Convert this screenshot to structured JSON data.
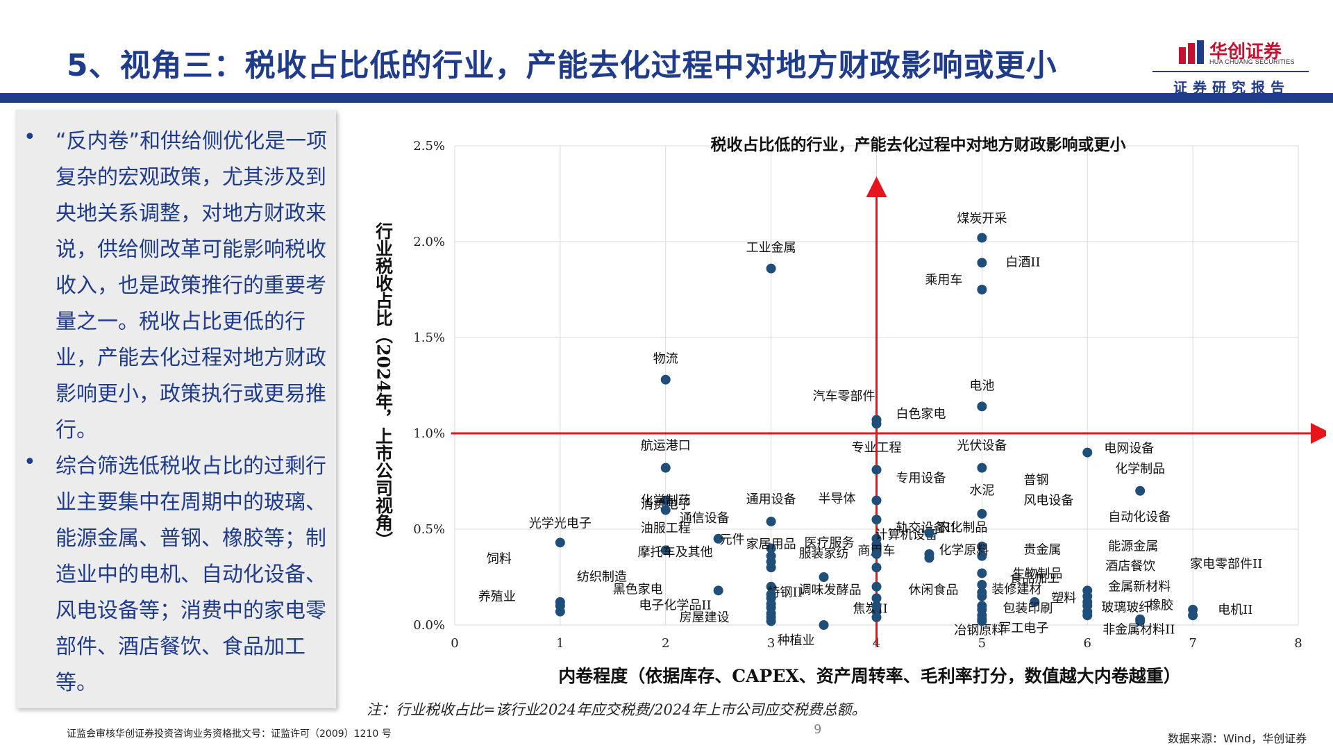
{
  "slide": {
    "title": "5、视角三：税收占比低的行业，产能去化过程中对地方财政影响或更小",
    "logo_cn": "华创证券",
    "logo_en": "HUA CHUANG SECURITIES",
    "logo_sub": "证券研究报告",
    "bullets": [
      "“反内卷”和供给侧优化是一项复杂的宏观政策，尤其涉及到央地关系调整，对地方财政来说，供给侧改革可能影响税收收入，也是政策推行的重要考量之一。税收占比更低的行业，产能去化过程对地方财政影响更小，政策执行或更易推行。",
      "综合筛选低税收占比的过剩行业主要集中在周期中的玻璃、能源金属、普钢、橡胶等；制造业中的电机、自动化设备、风电设备等；消费中的家电零部件、酒店餐饮、食品加工等。"
    ],
    "bullet_symbol": "•",
    "note": "注：行业税收占比=该行业2024年应交税费/2024年上市公司应交税费总额。",
    "footer_left": "证监会审核华创证券投资咨询业务资格批文号：证监许可（2009）1210 号",
    "page_number": "9",
    "footer_right": "数据来源：Wind，华创证券"
  },
  "colors": {
    "title": "#1f3b8c",
    "brand_red": "#c8102e",
    "point": "#1f4e79",
    "threshold_line": "#e8141c",
    "grid": "#d9d9d9"
  },
  "chart_data": {
    "type": "scatter",
    "title": "税收占比低的行业，产能去化过程中对地方财政影响或更小",
    "xlabel": "内卷程度（依据库存、CAPEX、资产周转率、毛利率打分，数值越大内卷越重）",
    "ylabel": "行业税收占比（2024年，上市公司视角）",
    "xlim": [
      0,
      8
    ],
    "ylim": [
      0,
      2.5
    ],
    "xticks": [
      "0",
      "1",
      "2",
      "3",
      "4",
      "5",
      "6",
      "7",
      "8"
    ],
    "yticks": [
      "0.0%",
      "0.5%",
      "1.0%",
      "1.5%",
      "2.0%",
      "2.5%"
    ],
    "grid": true,
    "reference_lines": {
      "x": 4,
      "y": 1.0
    },
    "labeled_points": [
      {
        "label": "煤炭开采",
        "x": 5,
        "y": 2.02
      },
      {
        "label": "白酒II",
        "x": 5,
        "y": 1.89
      },
      {
        "label": "乘用车",
        "x": 5,
        "y": 1.75
      },
      {
        "label": "工业金属",
        "x": 3,
        "y": 1.86
      },
      {
        "label": "物流",
        "x": 2,
        "y": 1.28
      },
      {
        "label": "电池",
        "x": 5,
        "y": 1.14
      },
      {
        "label": "汽车零部件",
        "x": 4,
        "y": 1.07
      },
      {
        "label": "白色家电",
        "x": 4,
        "y": 1.05
      },
      {
        "label": "航运港口",
        "x": 2,
        "y": 0.82
      },
      {
        "label": "专业工程",
        "x": 4,
        "y": 0.81
      },
      {
        "label": "光伏设备",
        "x": 5,
        "y": 0.82
      },
      {
        "label": "电网设备",
        "x": 6,
        "y": 0.9
      },
      {
        "label": "化学制品",
        "x": 6.5,
        "y": 0.7
      },
      {
        "label": "消费电子",
        "x": 2,
        "y": 0.65
      },
      {
        "label": "化学制药",
        "x": 2,
        "y": 0.6
      },
      {
        "label": "专用设备",
        "x": 4,
        "y": 0.65
      },
      {
        "label": "水泥",
        "x": 5,
        "y": 0.58
      },
      {
        "label": "普钢",
        "x": 5,
        "y": 0.41
      },
      {
        "label": "半导体",
        "x": 4,
        "y": 0.55
      },
      {
        "label": "轨交设备II",
        "x": 4,
        "y": 0.45
      },
      {
        "label": "通用设备",
        "x": 3,
        "y": 0.54
      },
      {
        "label": "通信设备",
        "x": 2.5,
        "y": 0.45
      },
      {
        "label": "计算机设备",
        "x": 4,
        "y": 0.42
      },
      {
        "label": "风电设备",
        "x": 5,
        "y": 0.36
      },
      {
        "label": "自动化设备",
        "x": 6,
        "y": 0.18
      },
      {
        "label": "医疗服务",
        "x": 4,
        "y": 0.4
      },
      {
        "label": "农化制品",
        "x": 4.5,
        "y": 0.48
      },
      {
        "label": "光学光电子",
        "x": 1,
        "y": 0.43
      },
      {
        "label": "油服工程",
        "x": 2,
        "y": 0.39
      },
      {
        "label": "家居用品",
        "x": 3,
        "y": 0.4
      },
      {
        "label": "贵金属",
        "x": 5,
        "y": 0.27
      },
      {
        "label": "能源金属",
        "x": 6,
        "y": 0.15
      },
      {
        "label": "化学原料",
        "x": 4.5,
        "y": 0.37
      },
      {
        "label": "生物制品",
        "x": 5,
        "y": 0.21
      },
      {
        "label": "酒店餐饮",
        "x": 6,
        "y": 0.12
      },
      {
        "label": "饲料",
        "x": 1,
        "y": 0.1
      },
      {
        "label": "服装家纺",
        "x": 3.5,
        "y": 0.25
      },
      {
        "label": "商用车",
        "x": 4,
        "y": 0.3
      },
      {
        "label": "食品加工",
        "x": 5,
        "y": 0.17
      },
      {
        "label": "家电零部件II",
        "x": 7,
        "y": 0.08
      },
      {
        "label": "纺织制造",
        "x": 1,
        "y": 0.07
      },
      {
        "label": "摩托车及其他",
        "x": 3,
        "y": 0.2
      },
      {
        "label": "元件",
        "x": 3,
        "y": 0.33
      },
      {
        "label": "金属新材料",
        "x": 6,
        "y": 0.1
      },
      {
        "label": "黑色家电",
        "x": 2.5,
        "y": 0.18
      },
      {
        "label": "特钢II",
        "x": 3,
        "y": 0.09
      },
      {
        "label": "休闲食品",
        "x": 4,
        "y": 0.14
      },
      {
        "label": "装修建材",
        "x": 5,
        "y": 0.15
      },
      {
        "label": "玻璃玻纤",
        "x": 6,
        "y": 0.07
      },
      {
        "label": "塑料",
        "x": 5.5,
        "y": 0.12
      },
      {
        "label": "养殖业",
        "x": 1,
        "y": 0.12
      },
      {
        "label": "电子化学品II",
        "x": 3,
        "y": 0.06
      },
      {
        "label": "调味发酵品",
        "x": 3,
        "y": 0.14
      },
      {
        "label": "橡胶",
        "x": 6.5,
        "y": 0.03
      },
      {
        "label": "电机II",
        "x": 7,
        "y": 0.05
      },
      {
        "label": "焦炭II",
        "x": 4,
        "y": 0.07
      },
      {
        "label": "包装印刷",
        "x": 5,
        "y": 0.08
      },
      {
        "label": "房屋建设",
        "x": 3,
        "y": 0.04
      },
      {
        "label": "冶钢原料",
        "x": 5,
        "y": 0.03
      },
      {
        "label": "军工电子",
        "x": 5,
        "y": 0.02
      },
      {
        "label": "非金属材料II",
        "x": 6.5,
        "y": 0.02
      },
      {
        "label": "种植业",
        "x": 3.5,
        "y": 0.0
      }
    ],
    "extra_points": [
      {
        "x": 4,
        "y": 0.37
      },
      {
        "x": 4,
        "y": 0.2
      },
      {
        "x": 4,
        "y": 0.1
      },
      {
        "x": 4,
        "y": 0.04
      },
      {
        "x": 3,
        "y": 0.36
      },
      {
        "x": 3,
        "y": 0.3
      },
      {
        "x": 3,
        "y": 0.16
      },
      {
        "x": 3,
        "y": 0.11
      },
      {
        "x": 3,
        "y": 0.02
      },
      {
        "x": 5,
        "y": 0.1
      },
      {
        "x": 5,
        "y": 0.05
      },
      {
        "x": 6,
        "y": 0.05
      },
      {
        "x": 4.5,
        "y": 0.35
      }
    ]
  }
}
